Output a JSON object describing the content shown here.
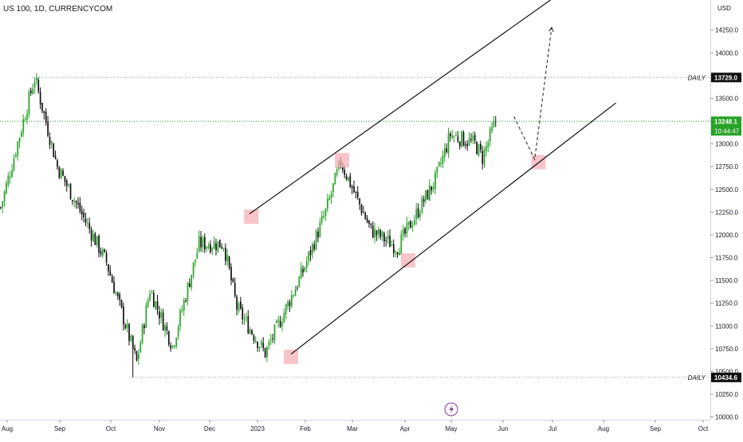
{
  "header": {
    "title": "US 100, 1D, CURRENCYCOM"
  },
  "price_axis": {
    "currency": "USD"
  },
  "colors": {
    "up": "#26a226",
    "down": "#111111",
    "highlight": "#f6b0b8",
    "grid": "#9e9e9e",
    "axis_line": "#d1d4dc",
    "badge_last": "#26a226",
    "badge_level": "#111111"
  },
  "icons": {
    "lightning": "lightning-icon"
  },
  "chart_data": {
    "type": "candlestick",
    "x_ticks": [
      "Aug",
      "Sep",
      "Oct",
      "Nov",
      "Dec",
      "2023",
      "Feb",
      "Mar",
      "Apr",
      "May",
      "Jun",
      "Jul",
      "Aug",
      "Sep",
      "Oct"
    ],
    "y_ticks": [
      "14250.0",
      "14000.0",
      "13750.0",
      "13500.0",
      "13250.0",
      "13000.0",
      "12750.0",
      "12500.0",
      "12250.0",
      "12000.0",
      "11750.0",
      "11500.0",
      "11250.0",
      "11000.0",
      "10750.0",
      "10500.0",
      "10250.0",
      "10000.0"
    ],
    "ylim": [
      9970,
      14580
    ],
    "waypoints": [
      {
        "day": 0,
        "price": 12300
      },
      {
        "day": 18,
        "price": 13729
      },
      {
        "day": 30,
        "price": 12750
      },
      {
        "day": 56,
        "price": 11700
      },
      {
        "day": 72,
        "price": 10600
      },
      {
        "day": 79,
        "price": 11400
      },
      {
        "day": 91,
        "price": 10780
      },
      {
        "day": 105,
        "price": 11900
      },
      {
        "day": 118,
        "price": 11900
      },
      {
        "day": 125,
        "price": 11200
      },
      {
        "day": 140,
        "price": 10700
      },
      {
        "day": 160,
        "price": 11600
      },
      {
        "day": 172,
        "price": 12250
      },
      {
        "day": 180,
        "price": 12800
      },
      {
        "day": 196,
        "price": 12050
      },
      {
        "day": 210,
        "price": 11860
      },
      {
        "day": 230,
        "price": 12600
      },
      {
        "day": 238,
        "price": 13100
      },
      {
        "day": 251,
        "price": 13000
      },
      {
        "day": 255,
        "price": 12850
      },
      {
        "day": 262,
        "price": 13248
      }
    ],
    "levels": [
      {
        "price": 13729.0,
        "badge": "13729.0",
        "label": "DAILY"
      },
      {
        "price": 10434.6,
        "badge": "10434.6",
        "label": "DAILY"
      }
    ],
    "last_price": {
      "price": 13248.1,
      "badge": "13248.1",
      "countdown": "10:44:47"
    },
    "channel": {
      "upper": [
        {
          "day": 132,
          "price": 12230
        },
        {
          "day": 292,
          "price": 14590
        }
      ],
      "lower": [
        {
          "day": 154,
          "price": 10690
        },
        {
          "day": 326,
          "price": 13450
        }
      ]
    },
    "highlights": [
      {
        "day": 133,
        "price": 12200
      },
      {
        "day": 181,
        "price": 12820
      },
      {
        "day": 216,
        "price": 11720
      },
      {
        "day": 154,
        "price": 10660
      },
      {
        "day": 285,
        "price": 12800
      }
    ],
    "projection": [
      {
        "day": 272,
        "price": 13300
      },
      {
        "day": 283,
        "price": 12830
      },
      {
        "day": 292,
        "price": 14280
      }
    ]
  }
}
